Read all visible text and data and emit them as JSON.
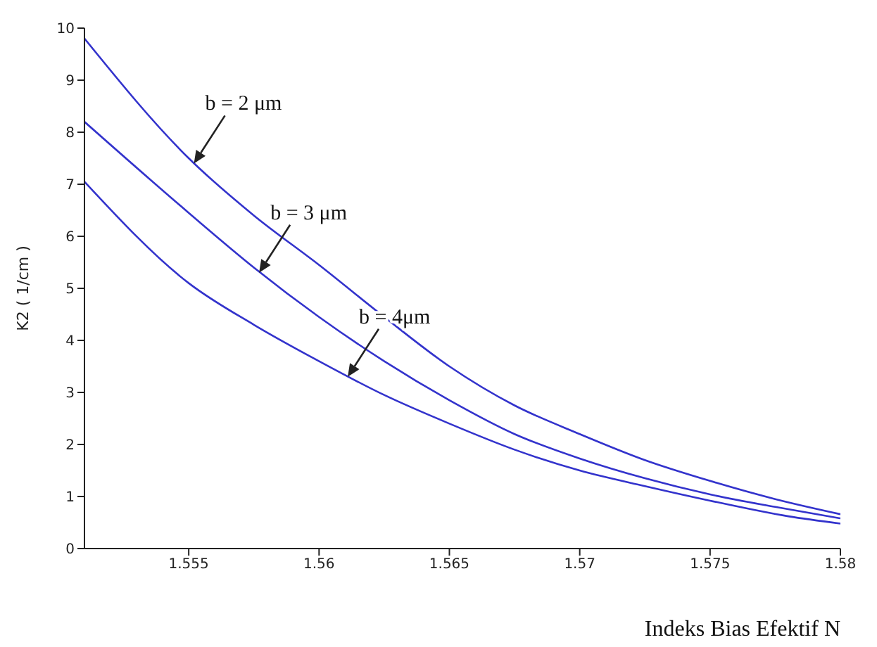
{
  "chart_data": {
    "type": "line",
    "xlabel": "Indeks Bias Efektif N",
    "ylabel": "K2 ( 1/cm )",
    "xlim": [
      1.551,
      1.58
    ],
    "xticks": [
      1.555,
      1.56,
      1.565,
      1.57,
      1.575,
      1.58
    ],
    "ylim": [
      0,
      10
    ],
    "yticks": [
      0,
      1,
      2,
      3,
      4,
      5,
      6,
      7,
      8,
      9,
      10
    ],
    "grid": false,
    "legend": false,
    "marker": "none",
    "line_style": "solid",
    "series": [
      {
        "color": "#3333cc",
        "x": [
          1.551,
          1.555,
          1.5575,
          1.56,
          1.5625,
          1.565,
          1.5675,
          1.57,
          1.5725,
          1.575,
          1.5775,
          1.58
        ],
        "values": [
          9.8,
          7.5,
          6.4,
          5.45,
          4.45,
          3.5,
          2.75,
          2.2,
          1.7,
          1.3,
          0.95,
          0.66
        ]
      },
      {
        "color": "#3333cc",
        "x": [
          1.551,
          1.555,
          1.5575,
          1.56,
          1.5625,
          1.565,
          1.5675,
          1.57,
          1.5725,
          1.575,
          1.5775,
          1.58
        ],
        "values": [
          8.2,
          6.45,
          5.4,
          4.45,
          3.6,
          2.85,
          2.2,
          1.73,
          1.35,
          1.04,
          0.8,
          0.58
        ]
      },
      {
        "color": "#3333cc",
        "x": [
          1.551,
          1.555,
          1.5575,
          1.56,
          1.5625,
          1.565,
          1.5675,
          1.57,
          1.5725,
          1.575,
          1.578,
          1.58
        ],
        "values": [
          7.05,
          5.1,
          4.3,
          3.6,
          2.95,
          2.4,
          1.9,
          1.5,
          1.2,
          0.92,
          0.62,
          0.48
        ]
      }
    ],
    "annotations": [
      {
        "text": "b = 2 μm",
        "x": 1.5552,
        "y": 7.4
      },
      {
        "text": "b = 3 μm",
        "x": 1.5577,
        "y": 5.3
      },
      {
        "text": "b = 4μm",
        "x": 1.5611,
        "y": 3.3
      }
    ]
  }
}
